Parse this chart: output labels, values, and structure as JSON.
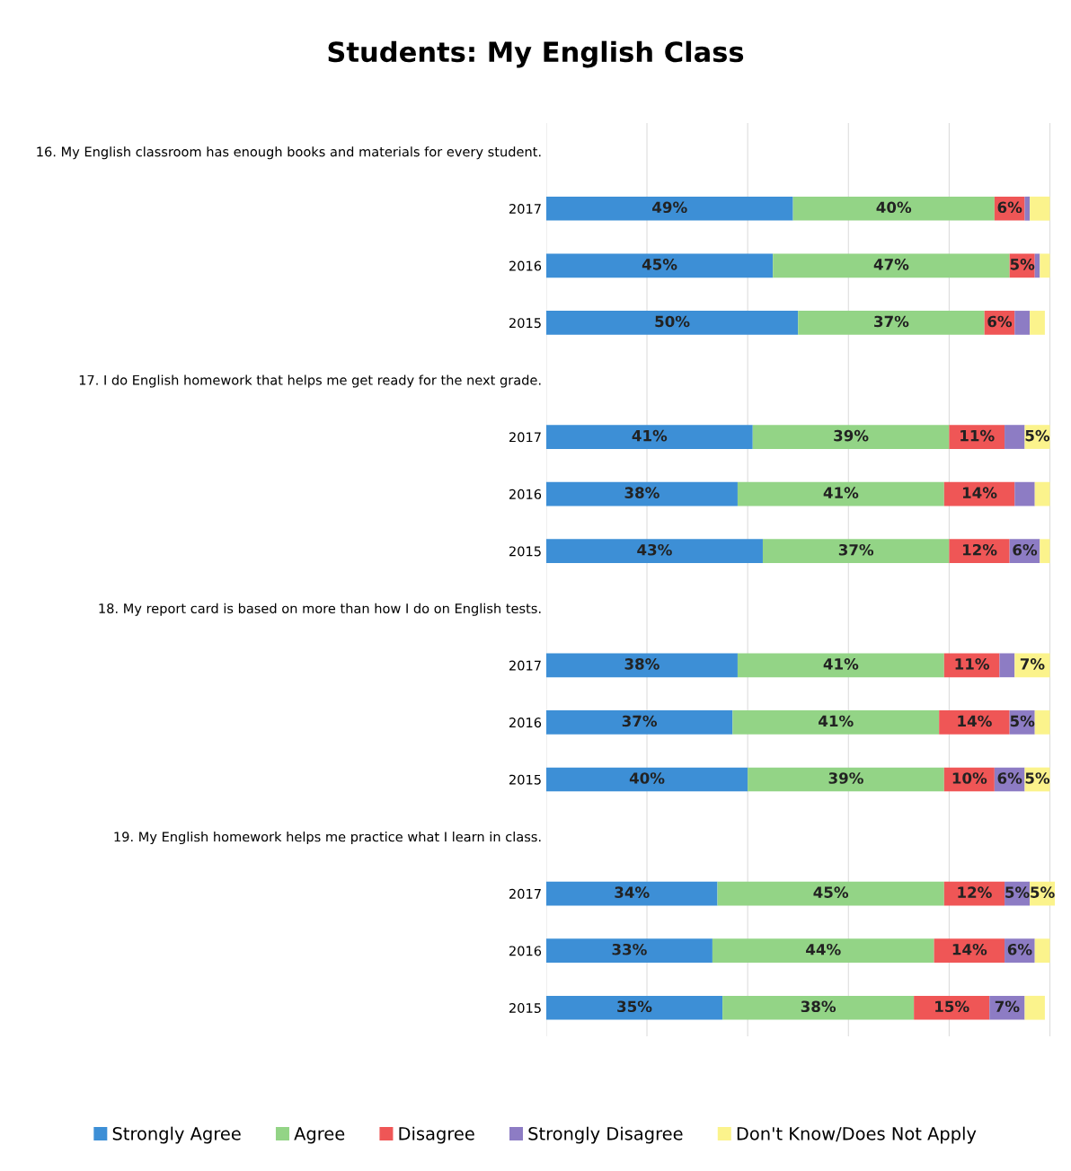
{
  "chart_data": {
    "type": "bar",
    "orientation": "horizontal",
    "stacked": true,
    "title": "Students: My English Class",
    "categories": [
      "16. My English classroom has enough books and materials for every student.",
      "2017",
      "2016",
      "2015",
      "17. I do English homework that helps me get ready for the next grade.",
      "2017",
      "2016",
      "2015",
      "18. My report card is based on more than how I do on English tests.",
      "2017",
      "2016",
      "2015",
      "19. My English homework helps me practice what I learn in class.",
      "2017",
      "2016",
      "2015"
    ],
    "series": [
      {
        "name": "Strongly Agree",
        "color": "#3d8fd6",
        "values": [
          null,
          49,
          45,
          50,
          null,
          41,
          38,
          43,
          null,
          38,
          37,
          40,
          null,
          34,
          33,
          35
        ],
        "value_labels": [
          null,
          "49%",
          "45%",
          "50%",
          null,
          "41%",
          "38%",
          "43%",
          null,
          "38%",
          "37%",
          "40%",
          null,
          "34%",
          "33%",
          "35%"
        ]
      },
      {
        "name": "Agree",
        "color": "#93d486",
        "values": [
          null,
          40,
          47,
          37,
          null,
          39,
          41,
          37,
          null,
          41,
          41,
          39,
          null,
          45,
          44,
          38
        ],
        "value_labels": [
          null,
          "40%",
          "47%",
          "37%",
          null,
          "39%",
          "41%",
          "37%",
          null,
          "41%",
          "41%",
          "39%",
          null,
          "45%",
          "44%",
          "38%"
        ]
      },
      {
        "name": "Disagree",
        "color": "#ef5656",
        "values": [
          null,
          6,
          5,
          6,
          null,
          11,
          14,
          12,
          null,
          11,
          14,
          10,
          null,
          12,
          14,
          15
        ],
        "value_labels": [
          null,
          "6%",
          "5%",
          "6%",
          null,
          "11%",
          "14%",
          "12%",
          null,
          "11%",
          "14%",
          "10%",
          null,
          "12%",
          "14%",
          "15%"
        ]
      },
      {
        "name": "Strongly Disagree",
        "color": "#8d7cc4",
        "values": [
          null,
          1,
          1,
          3,
          null,
          4,
          4,
          6,
          null,
          3,
          5,
          6,
          null,
          5,
          6,
          7
        ],
        "value_labels": [
          null,
          null,
          null,
          null,
          null,
          null,
          null,
          "6%",
          null,
          null,
          "5%",
          "6%",
          null,
          "5%",
          "6%",
          "7%"
        ]
      },
      {
        "name": "Don't Know/Does Not Apply",
        "color": "#fbf38c",
        "values": [
          null,
          4,
          2,
          3,
          null,
          5,
          3,
          2,
          null,
          7,
          3,
          5,
          null,
          5,
          3,
          4
        ],
        "value_labels": [
          null,
          null,
          null,
          null,
          null,
          "5%",
          null,
          null,
          null,
          "7%",
          null,
          "5%",
          null,
          "5%",
          null,
          null
        ]
      }
    ],
    "xlim": [
      0,
      101
    ],
    "xticks": [
      {
        "value": 0,
        "label": null
      },
      {
        "value": 20,
        "label": null
      },
      {
        "value": 40,
        "label": null
      },
      {
        "value": 60,
        "label": null
      },
      {
        "value": 80,
        "label": null
      },
      {
        "value": 100,
        "label": null
      }
    ],
    "tick_labels": "y",
    "grid": "x",
    "legend": "bottom"
  }
}
